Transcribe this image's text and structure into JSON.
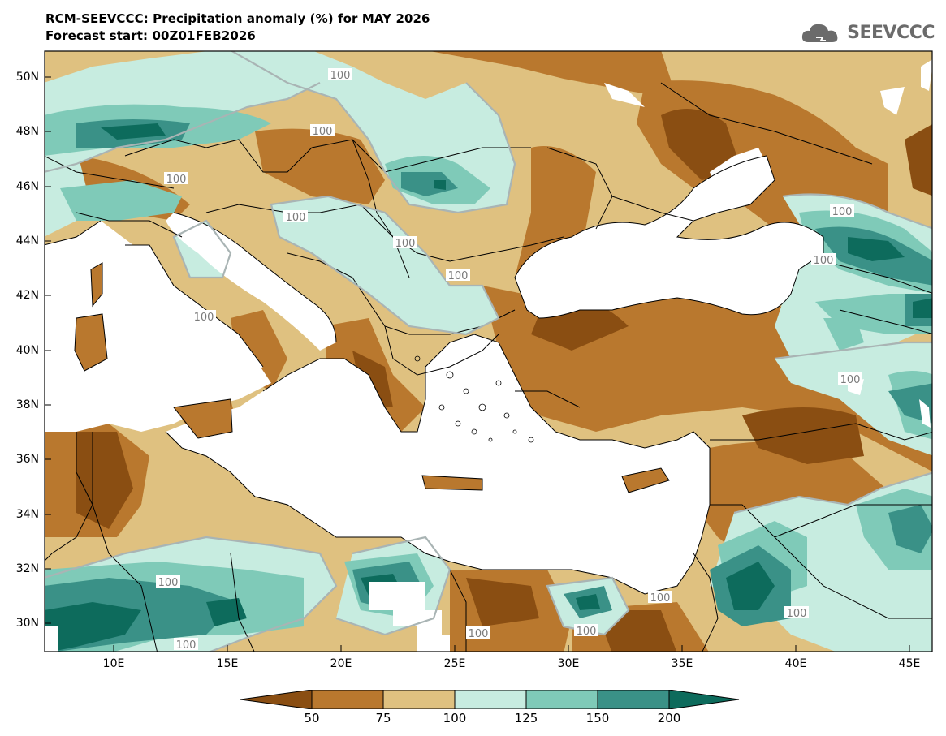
{
  "title": {
    "line1": "RCM-SEEVCCC: Precipitation anomaly (%) for MAY 2026",
    "line2": "Forecast start: 00Z01FEB2026"
  },
  "logo": {
    "text": "SEEVCCC",
    "icon": "cloud-icon"
  },
  "axes": {
    "lat_labels": [
      "50N",
      "48N",
      "46N",
      "44N",
      "42N",
      "40N",
      "38N",
      "36N",
      "34N",
      "32N",
      "30N"
    ],
    "lon_labels": [
      "10E",
      "15E",
      "20E",
      "25E",
      "30E",
      "35E",
      "40E",
      "45E"
    ]
  },
  "contour_labels": [
    "100",
    "100",
    "100",
    "100",
    "100",
    "100",
    "100",
    "100",
    "100",
    "100",
    "100",
    "100",
    "100",
    "100",
    "100",
    "100"
  ],
  "colorbar": {
    "labels": [
      "50",
      "75",
      "100",
      "125",
      "150",
      "200"
    ],
    "colors": [
      "#8a4e12",
      "#b9782e",
      "#dfc180",
      "#c7ece0",
      "#7fcab8",
      "#3a9187",
      "#0d6b5c"
    ]
  },
  "colors": {
    "land_dry_extreme": "#8a4e12",
    "land_dry": "#b9782e",
    "land_mild_dry": "#dfc180",
    "land_mild_wet": "#c7ece0",
    "land_wet": "#7fcab8",
    "land_very_wet": "#3a9187",
    "land_wet_extreme": "#0d6b5c",
    "sea": "#ffffff"
  }
}
